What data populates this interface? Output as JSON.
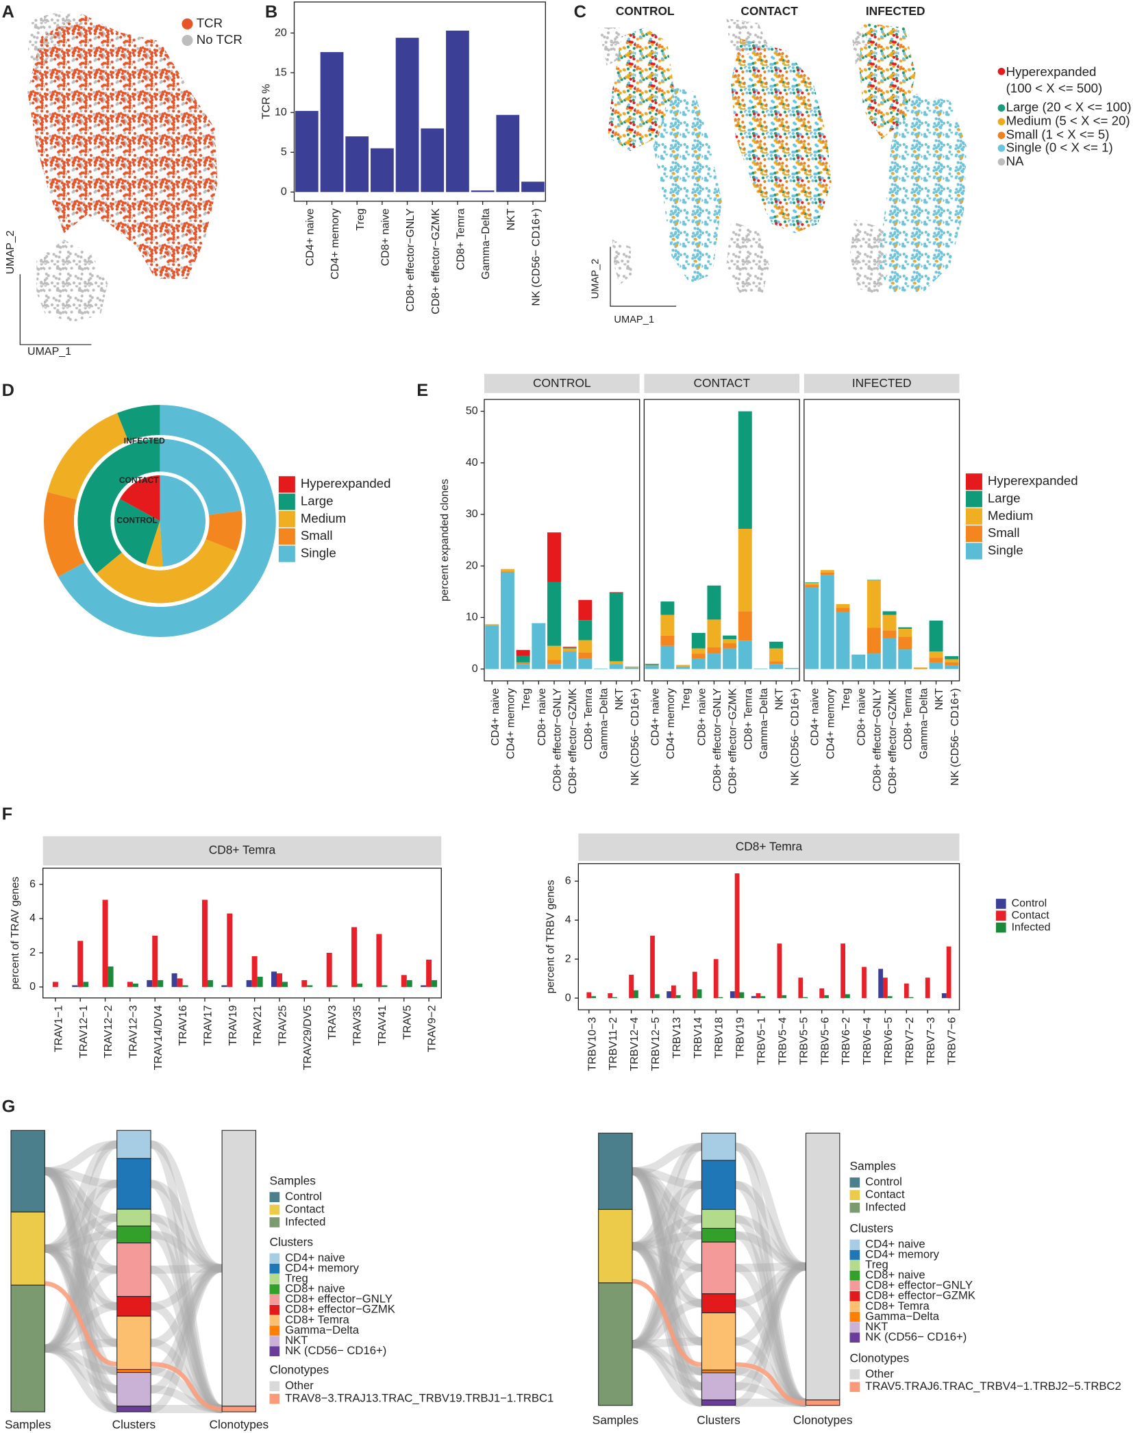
{
  "chart_data": [
    {
      "type": "umap",
      "panel": "A",
      "xlabel": "UMAP_1",
      "ylabel": "UMAP_2",
      "series": [
        {
          "name": "TCR",
          "color": "#e8542a"
        },
        {
          "name": "No TCR",
          "color": "#bdbdbd"
        }
      ]
    },
    {
      "type": "bar",
      "panel": "B",
      "ylabel": "TCR %",
      "color": "#3b3f96",
      "categories": [
        "CD4+ naive",
        "CD4+ memory",
        "Treg",
        "CD8+ naive",
        "CD8+ effector−GNLY",
        "CD8+ effector−GZMK",
        "CD8+ Temra",
        "Gamma−Delta",
        "NKT",
        "NK (CD56− CD16+)"
      ],
      "values": [
        10.2,
        17.6,
        7.0,
        5.5,
        19.4,
        8.0,
        20.3,
        0.2,
        9.7,
        1.3
      ],
      "ylim": [
        -1.15,
        23.9
      ],
      "yticks": [
        0,
        5,
        10,
        15,
        20
      ]
    },
    {
      "type": "umap",
      "panel": "C",
      "xlabel": "UMAP_1",
      "ylabel": "UMAP_2",
      "facets": [
        "CONTROL",
        "CONTACT",
        "INFECTED"
      ],
      "series": [
        {
          "name": "Hyperexpanded\n(100 < X <= 500)",
          "color": "#e41a1c"
        },
        {
          "name": "Large (20 < X <= 100)",
          "color": "#1b9a7c"
        },
        {
          "name": "Medium (5 < X <= 20)",
          "color": "#f0a91e"
        },
        {
          "name": "Small (1 < X <= 5)",
          "color": "#f07f1d"
        },
        {
          "name": "Single (0 < X <= 1)",
          "color": "#6cc4dc"
        },
        {
          "name": "NA",
          "color": "#bdbdbd"
        }
      ]
    },
    {
      "type": "donut",
      "panel": "D",
      "rings": [
        "CONTROL",
        "CONTACT",
        "INFECTED"
      ],
      "series": [
        {
          "name": "Hyperexpanded",
          "color": "#e41a1c",
          "values": [
            17,
            0,
            0
          ]
        },
        {
          "name": "Large",
          "color": "#0f9a7a",
          "values": [
            28,
            36,
            6
          ]
        },
        {
          "name": "Medium",
          "color": "#f0ae22",
          "values": [
            6,
            33,
            15
          ]
        },
        {
          "name": "Small",
          "color": "#f4861f",
          "values": [
            0,
            8,
            12
          ]
        },
        {
          "name": "Single",
          "color": "#5bbcd6",
          "values": [
            49,
            23,
            67
          ]
        }
      ]
    },
    {
      "type": "facet-stacked-bar",
      "panel": "E",
      "ylabel": "percent expanded clones",
      "facets": [
        "CONTROL",
        "CONTACT",
        "INFECTED"
      ],
      "categories": [
        "CD4+ naive",
        "CD4+ memory",
        "Treg",
        "CD8+ naive",
        "CD8+ effector−GNLY",
        "CD8+ effector−GZMK",
        "CD8+ Temra",
        "Gamma−Delta",
        "NKT",
        "NK (CD56− CD16+)"
      ],
      "ylim": [
        -2.3,
        52.3
      ],
      "yticks": [
        0,
        10,
        20,
        30,
        40,
        50
      ],
      "series": [
        {
          "name": "Hyperexpanded",
          "color": "#e41a1c",
          "values": [
            [
              0,
              0,
              1.2,
              0,
              9.6,
              0.2,
              3.9,
              0,
              0.2,
              0
            ],
            [
              0,
              0,
              0,
              0,
              0,
              0,
              0,
              0,
              0,
              0
            ],
            [
              0,
              0,
              0,
              0,
              0,
              0,
              0,
              0,
              0,
              0
            ]
          ]
        },
        {
          "name": "Large",
          "color": "#0f9a7a",
          "values": [
            [
              0,
              0,
              1.2,
              0,
              12.4,
              0.1,
              3.9,
              0,
              13.2,
              0
            ],
            [
              0.2,
              2.6,
              0,
              3.0,
              6.6,
              0.7,
              22.8,
              0,
              1.3,
              0
            ],
            [
              0.1,
              0,
              0,
              0,
              0.1,
              0.7,
              0.3,
              0,
              6.0,
              0.6
            ]
          ]
        },
        {
          "name": "Medium",
          "color": "#f0ae22",
          "values": [
            [
              0.2,
              0.5,
              0,
              0,
              2.7,
              0.5,
              2.4,
              0,
              0.5,
              0.2
            ],
            [
              0,
              4.0,
              0.3,
              1.0,
              5.4,
              0.8,
              16.0,
              0,
              2.5,
              0
            ],
            [
              0.4,
              0.5,
              0.7,
              0,
              9.2,
              3.0,
              1.5,
              0.1,
              1.2,
              0.6
            ]
          ]
        },
        {
          "name": "Small",
          "color": "#f4861f",
          "values": [
            [
              0,
              0.2,
              0.3,
              0,
              0.8,
              0.2,
              1.2,
              0,
              0,
              0
            ],
            [
              0.2,
              2.0,
              0,
              1.0,
              1.2,
              1.0,
              5.7,
              0,
              0.5,
              0
            ],
            [
              0.4,
              0.5,
              0.9,
              0,
              5.0,
              1.5,
              2.5,
              0.2,
              1.0,
              0.6
            ]
          ]
        },
        {
          "name": "Single",
          "color": "#5bbcd6",
          "values": [
            [
              8.5,
              18.7,
              1.0,
              8.9,
              1.0,
              3.3,
              2.0,
              0.1,
              1.0,
              0.3
            ],
            [
              0.6,
              4.5,
              0.5,
              2.0,
              3.0,
              4.0,
              5.5,
              0.1,
              1.0,
              0.2
            ],
            [
              15.9,
              18.2,
              11.0,
              2.8,
              3.0,
              6.0,
              3.8,
              0,
              1.2,
              0.7
            ]
          ]
        }
      ]
    },
    {
      "type": "grouped-bar",
      "panel": "F",
      "strip": "CD8+ Temra",
      "ylabel": "percent of TRAV genes",
      "categories": [
        "TRAV1−1",
        "TRAV12−1",
        "TRAV12−2",
        "TRAV12−3",
        "TRAV14/DV4",
        "TRAV16",
        "TRAV17",
        "TRAV19",
        "TRAV21",
        "TRAV25",
        "TRAV29/DV5",
        "TRAV3",
        "TRAV35",
        "TRAV41",
        "TRAV5",
        "TRAV9−2"
      ],
      "ylim": [
        -0.64,
        6.95
      ],
      "yticks": [
        0,
        2,
        4,
        6
      ],
      "series": [
        {
          "name": "Control",
          "color": "#3b3f96",
          "values": [
            0,
            0.1,
            0,
            0,
            0.4,
            0.8,
            0,
            0.1,
            0.4,
            0.9,
            0,
            0,
            0,
            0,
            0,
            0.1
          ]
        },
        {
          "name": "Contact",
          "color": "#e8202a",
          "values": [
            0.3,
            2.7,
            5.1,
            0.3,
            3.0,
            0.5,
            5.1,
            4.3,
            1.8,
            0.8,
            0.4,
            2.0,
            3.5,
            3.1,
            0.7,
            1.6
          ]
        },
        {
          "name": "Infected",
          "color": "#1a8a3a",
          "values": [
            0,
            0.3,
            1.2,
            0.2,
            0.4,
            0.1,
            0.4,
            0,
            0.6,
            0.3,
            0.1,
            0.1,
            0.2,
            0.1,
            0.4,
            0.4
          ]
        }
      ]
    },
    {
      "type": "grouped-bar",
      "strip": "CD8+ Temra",
      "ylabel": "percent of TRBV genes",
      "legend": "right",
      "categories": [
        "TRBV10−3",
        "TRBV11−2",
        "TRBV12−4",
        "TRBV12−5",
        "TRBV13",
        "TRBV14",
        "TRBV18",
        "TRBV19",
        "TRBV5−1",
        "TRBV5−4",
        "TRBV5−5",
        "TRBV5−6",
        "TRBV6−2",
        "TRBV6−4",
        "TRBV6−5",
        "TRBV7−2",
        "TRBV7−3",
        "TRBV7−6"
      ],
      "ylim": [
        -0.6,
        6.9
      ],
      "yticks": [
        0,
        2,
        4,
        6
      ],
      "series": [
        {
          "name": "Control",
          "color": "#3b3f96",
          "values": [
            0,
            0,
            0,
            0,
            0.35,
            0,
            0,
            0.35,
            0.1,
            0,
            0,
            0,
            0,
            0,
            1.5,
            0,
            0,
            0.25
          ]
        },
        {
          "name": "Contact",
          "color": "#e8202a",
          "values": [
            0.3,
            0.25,
            1.2,
            3.2,
            0.65,
            1.35,
            2.0,
            6.4,
            0.25,
            2.8,
            1.05,
            0.5,
            2.8,
            1.6,
            1.05,
            0.75,
            1.05,
            2.65
          ]
        },
        {
          "name": "Infected",
          "color": "#1a8a3a",
          "values": [
            0.1,
            0.05,
            0.4,
            0.2,
            0.15,
            0.45,
            0.05,
            0.3,
            0.1,
            0.15,
            0.05,
            0.15,
            0.2,
            0,
            0.1,
            0.05,
            0,
            0
          ]
        }
      ]
    },
    {
      "type": "alluvial",
      "panel": "G",
      "groups": [
        {
          "title": "Samples",
          "items": [
            {
              "name": "Control",
              "color": "#4b7f8c",
              "value": 29
            },
            {
              "name": "Contact",
              "color": "#eccb4a",
              "value": 26
            },
            {
              "name": "Infected",
              "color": "#7c9a70",
              "value": 45
            }
          ]
        },
        {
          "title": "Clusters",
          "items": [
            {
              "name": "CD4+ naive",
              "color": "#a6cde4",
              "value": 10
            },
            {
              "name": "CD4+ memory",
              "color": "#1f77b8",
              "value": 18
            },
            {
              "name": "Treg",
              "color": "#b2dc8b",
              "value": 6
            },
            {
              "name": "CD8+ naive",
              "color": "#33a02c",
              "value": 6
            },
            {
              "name": "CD8+ effector−GNLY",
              "color": "#f49a98",
              "value": 19
            },
            {
              "name": "CD8+ effector−GZMK",
              "color": "#e31a1c",
              "value": 7
            },
            {
              "name": "CD8+ Temra",
              "color": "#fcbf6f",
              "value": 19
            },
            {
              "name": "Gamma−Delta",
              "color": "#ff7f00",
              "value": 1
            },
            {
              "name": "NKT",
              "color": "#cab2d6",
              "value": 12
            },
            {
              "name": "NK (CD56− CD16+)",
              "color": "#6a3d9a",
              "value": 2
            }
          ]
        },
        {
          "title": "Clonotypes",
          "items": [
            {
              "name": "Other",
              "color": "#d9d9d9",
              "value": 98
            },
            {
              "name": "TRAV8−3.TRAJ13.TRAC_TRBV19.TRBJ1−1.TRBC1",
              "color": "#fb9a78",
              "value": 2
            }
          ]
        }
      ]
    },
    {
      "type": "alluvial",
      "groups": [
        {
          "title": "Samples",
          "items": [
            {
              "name": "Control",
              "color": "#4b7f8c",
              "value": 28
            },
            {
              "name": "Contact",
              "color": "#eccb4a",
              "value": 27
            },
            {
              "name": "Infected",
              "color": "#7c9a70",
              "value": 45
            }
          ]
        },
        {
          "title": "Clusters",
          "items": [
            {
              "name": "CD4+ naive",
              "color": "#a6cde4",
              "value": 10
            },
            {
              "name": "CD4+ memory",
              "color": "#1f77b8",
              "value": 18
            },
            {
              "name": "Treg",
              "color": "#b2dc8b",
              "value": 7
            },
            {
              "name": "CD8+ naive",
              "color": "#33a02c",
              "value": 5
            },
            {
              "name": "CD8+ effector−GNLY",
              "color": "#f49a98",
              "value": 19
            },
            {
              "name": "CD8+ effector−GZMK",
              "color": "#e31a1c",
              "value": 7
            },
            {
              "name": "CD8+ Temra",
              "color": "#fcbf6f",
              "value": 21
            },
            {
              "name": "Gamma−Delta",
              "color": "#ff7f00",
              "value": 1
            },
            {
              "name": "NKT",
              "color": "#cab2d6",
              "value": 10
            },
            {
              "name": "NK (CD56− CD16+)",
              "color": "#6a3d9a",
              "value": 2
            }
          ]
        },
        {
          "title": "Clonotypes",
          "items": [
            {
              "name": "Other",
              "color": "#d9d9d9",
              "value": 98
            },
            {
              "name": "TRAV5.TRAJ6.TRAC_TRBV4−1.TRBJ2−5.TRBC2",
              "color": "#fb9a78",
              "value": 2
            }
          ]
        }
      ]
    }
  ]
}
